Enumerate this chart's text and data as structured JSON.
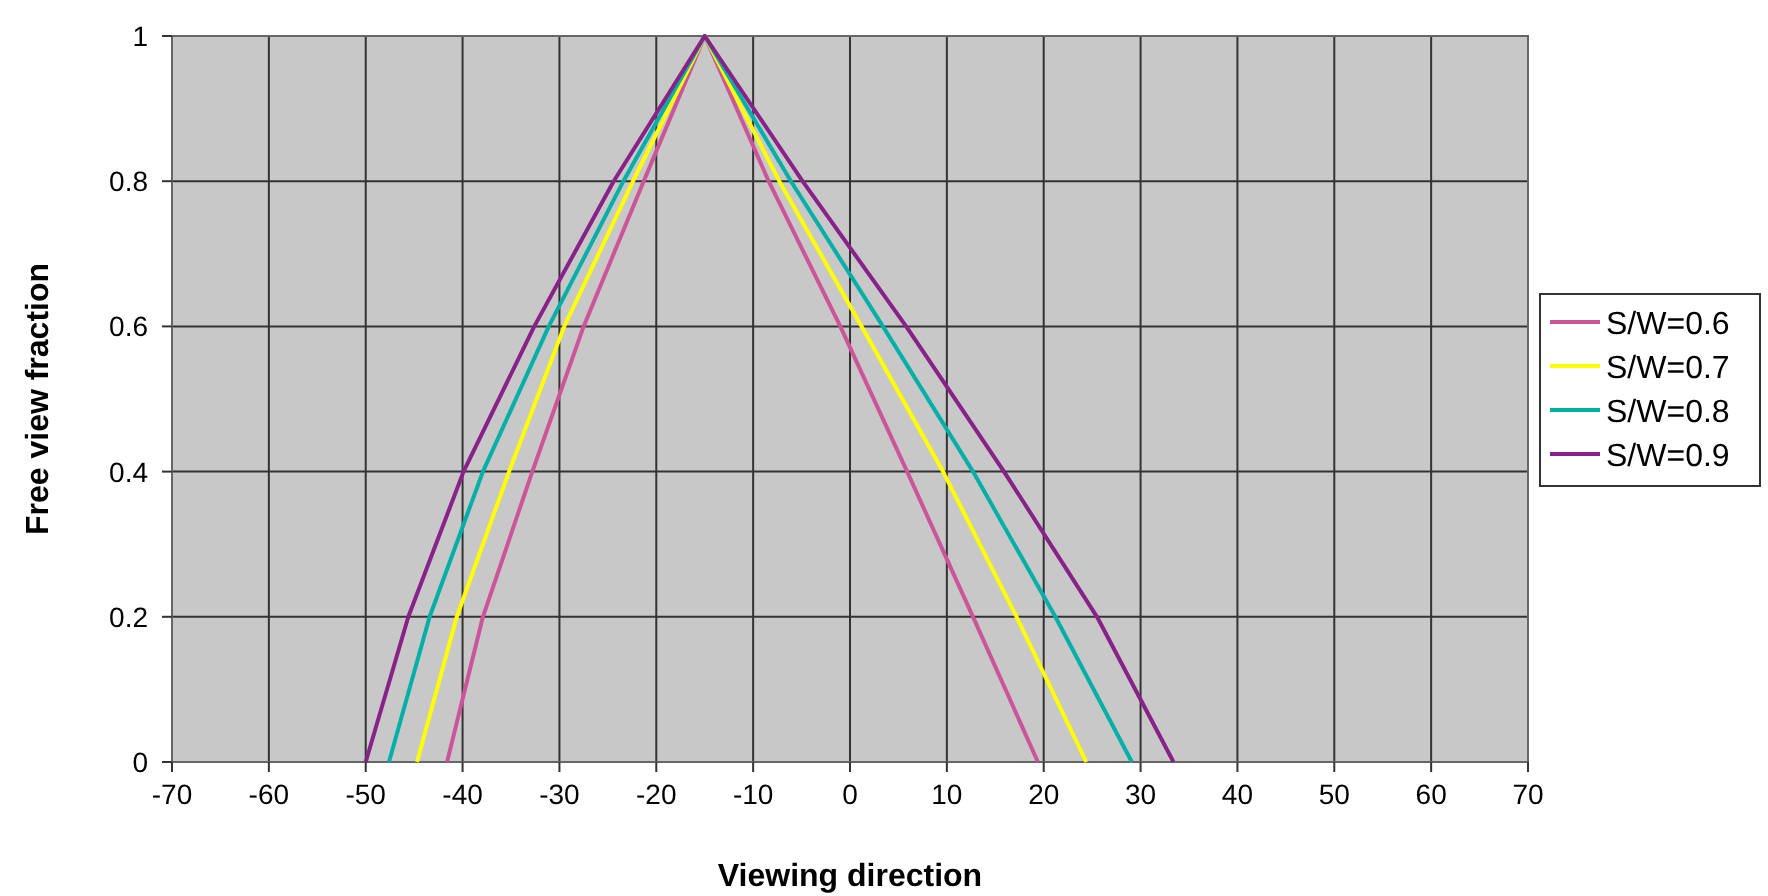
{
  "chart_data": {
    "type": "line",
    "xlabel": "Viewing direction",
    "ylabel": "Free view fraction",
    "xlim": [
      -70,
      70
    ],
    "xticks": [
      -70,
      -60,
      -50,
      -40,
      -30,
      -20,
      -10,
      0,
      10,
      20,
      30,
      40,
      50,
      60,
      70
    ],
    "ylim": [
      0,
      1
    ],
    "yticks": [
      0,
      0.2,
      0.4,
      0.6,
      0.8,
      1
    ],
    "grid": true,
    "legend": "right",
    "marker": "none",
    "line_style": "solid",
    "series": [
      {
        "name": "S/W=0.6",
        "color": "#cc5599",
        "x": [
          -41.6,
          -37.9,
          -32.8,
          -27.5,
          -21.3,
          -15,
          -8.4,
          -1,
          5.9,
          12.7,
          19.4
        ],
        "values": [
          0,
          0.2,
          0.4,
          0.6,
          0.8,
          1,
          0.8,
          0.6,
          0.4,
          0.2,
          0
        ]
      },
      {
        "name": "S/W=0.7",
        "color": "#ffff00",
        "x": [
          -44.7,
          -40.6,
          -35.2,
          -29.5,
          -22.4,
          -15,
          -7.3,
          1.2,
          9.6,
          17.2,
          24.4
        ],
        "values": [
          0,
          0.2,
          0.4,
          0.6,
          0.8,
          1,
          0.8,
          0.6,
          0.4,
          0.2,
          0
        ]
      },
      {
        "name": "S/W=0.8",
        "color": "#00b0a8",
        "x": [
          -47.6,
          -43.4,
          -37.9,
          -31.1,
          -23.4,
          -15,
          -6.1,
          3.4,
          12.7,
          21.2,
          29.1
        ],
        "values": [
          0,
          0.2,
          0.4,
          0.6,
          0.8,
          1,
          0.8,
          0.6,
          0.4,
          0.2,
          0
        ]
      },
      {
        "name": "S/W=0.9",
        "color": "#882288",
        "x": [
          -50,
          -45.6,
          -39.9,
          -32.6,
          -24.4,
          -15,
          -4.9,
          5.8,
          15.9,
          25.5,
          33.4
        ],
        "values": [
          0,
          0.2,
          0.4,
          0.6,
          0.8,
          1,
          0.8,
          0.6,
          0.4,
          0.2,
          0
        ]
      }
    ]
  }
}
